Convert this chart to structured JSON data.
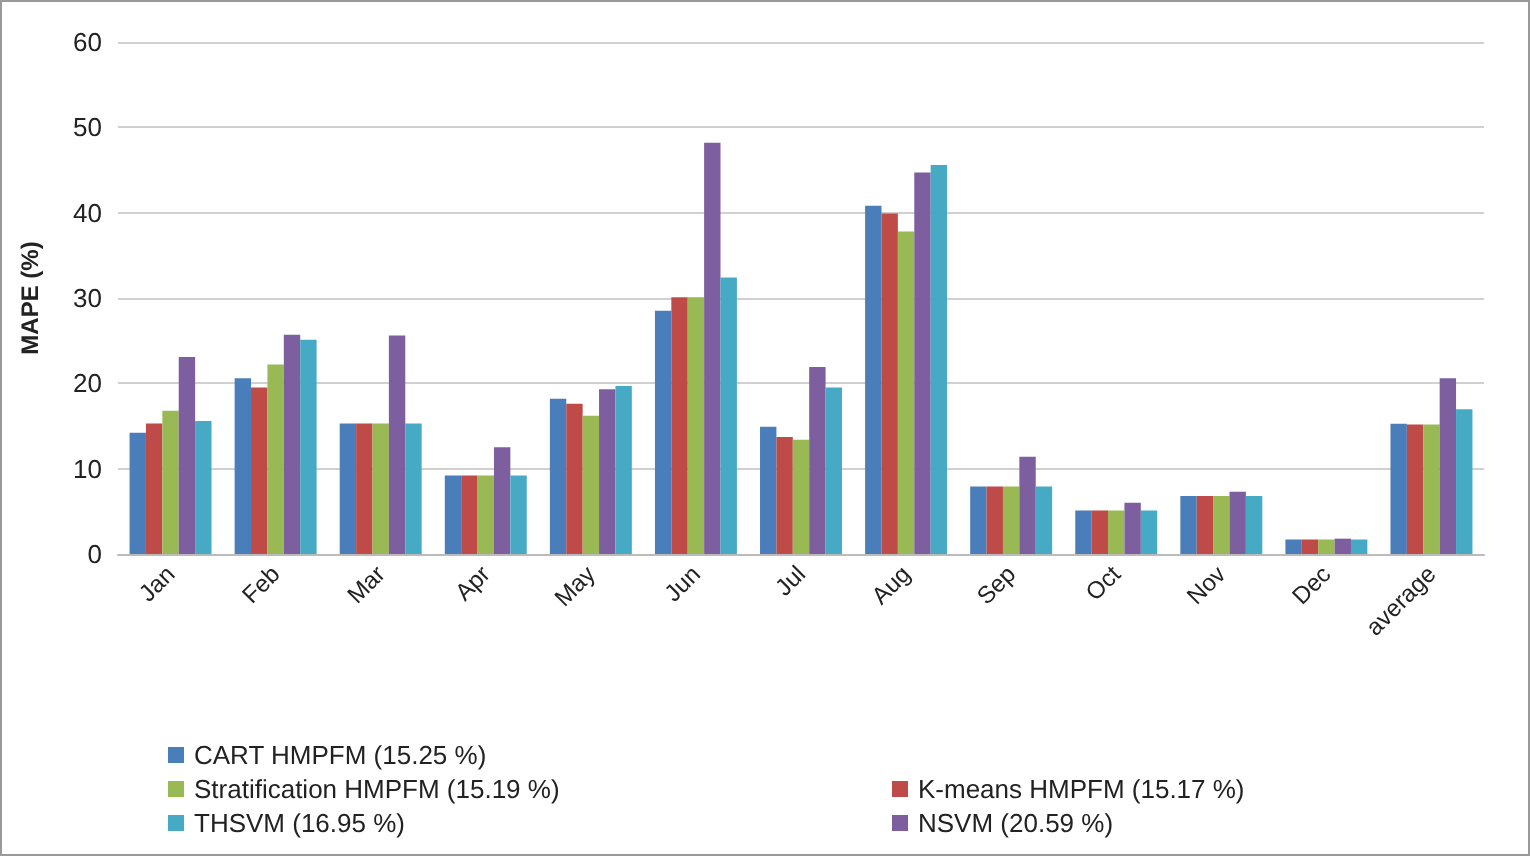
{
  "chart_data": {
    "type": "bar",
    "ylabel": "MAPE (%)",
    "categories": [
      "Jan",
      "Feb",
      "Mar",
      "Apr",
      "May",
      "Jun",
      "Jul",
      "Aug",
      "Sep",
      "Oct",
      "Nov",
      "Dec",
      "average"
    ],
    "series": [
      {
        "name": "CART HMPFM (15.25 %)",
        "color": "#4a7ebb",
        "values": [
          14.2,
          20.6,
          15.3,
          9.2,
          18.2,
          28.5,
          14.9,
          40.8,
          7.9,
          5.1,
          6.8,
          1.7,
          15.25
        ]
      },
      {
        "name": "K-means HMPFM (15.17 %)",
        "color": "#be4b48",
        "values": [
          15.3,
          19.5,
          15.3,
          9.2,
          17.6,
          30.1,
          13.7,
          39.9,
          7.9,
          5.1,
          6.8,
          1.7,
          15.17
        ]
      },
      {
        "name": "Stratification HMPFM (15.19 %)",
        "color": "#98b954",
        "values": [
          16.8,
          22.2,
          15.3,
          9.2,
          16.2,
          30.1,
          13.4,
          37.8,
          7.9,
          5.1,
          6.8,
          1.7,
          15.19
        ]
      },
      {
        "name": "NSVM (20.59 %)",
        "color": "#7d5fa0",
        "values": [
          23.1,
          25.7,
          25.6,
          12.5,
          19.3,
          48.2,
          21.9,
          44.7,
          11.4,
          6.0,
          7.3,
          1.8,
          20.59
        ]
      },
      {
        "name": "THSVM (16.95 %)",
        "color": "#46aac5",
        "values": [
          15.6,
          25.1,
          15.3,
          9.2,
          19.7,
          32.4,
          19.5,
          45.6,
          7.9,
          5.1,
          6.8,
          1.7,
          16.95
        ]
      }
    ],
    "ylim": [
      0,
      60
    ],
    "yticks": [
      0,
      10,
      20,
      30,
      40,
      50,
      60
    ],
    "grid": "y",
    "legend": "bottom"
  }
}
